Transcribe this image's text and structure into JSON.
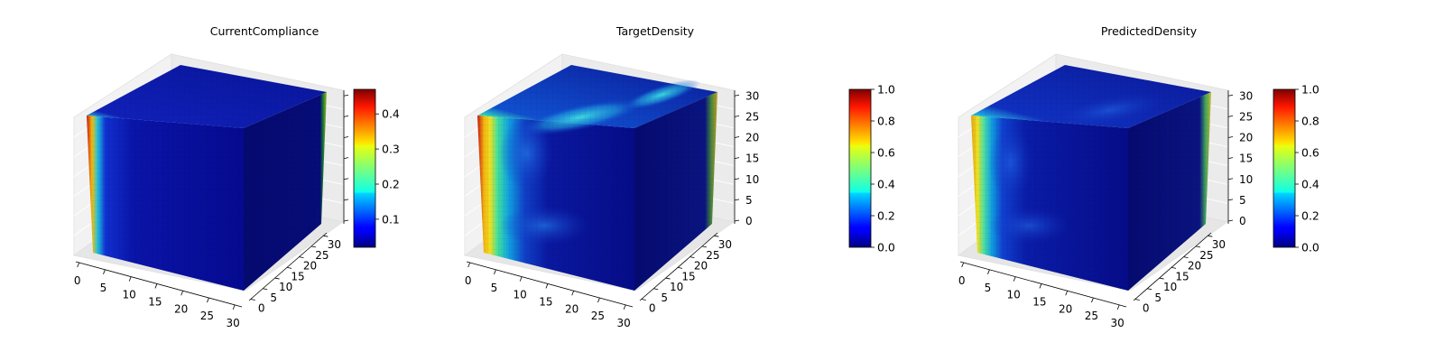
{
  "chart_data": [
    {
      "type": "voxel-3d",
      "title": "CurrentCompliance",
      "x_ticks": [
        "0",
        "5",
        "10",
        "15",
        "20",
        "25",
        "30"
      ],
      "y_ticks": [
        "0",
        "5",
        "10",
        "15",
        "20",
        "25",
        "30"
      ],
      "z_ticks": [],
      "grid_size": 32,
      "colorbar": {
        "colormap": "jet",
        "range": [
          0.02,
          0.47
        ],
        "tick_values": [
          0.1,
          0.2,
          0.3,
          0.4
        ],
        "tick_labels": [
          "0.1",
          "0.2",
          "0.3",
          "0.4"
        ]
      }
    },
    {
      "type": "voxel-3d",
      "title": "TargetDensity",
      "x_ticks": [
        "0",
        "5",
        "10",
        "15",
        "20",
        "25",
        "30"
      ],
      "y_ticks": [
        "0",
        "5",
        "10",
        "15",
        "20",
        "25",
        "30"
      ],
      "z_ticks": [
        "0",
        "5",
        "10",
        "15",
        "20",
        "25",
        "30"
      ],
      "grid_size": 32,
      "colorbar": {
        "colormap": "jet",
        "range": [
          0.0,
          1.0
        ],
        "tick_values": [
          0.0,
          0.2,
          0.4,
          0.6,
          0.8,
          1.0
        ],
        "tick_labels": [
          "0.0",
          "0.2",
          "0.4",
          "0.6",
          "0.8",
          "1.0"
        ]
      }
    },
    {
      "type": "voxel-3d",
      "title": "PredictedDensity",
      "x_ticks": [
        "0",
        "5",
        "10",
        "15",
        "20",
        "25",
        "30"
      ],
      "y_ticks": [
        "0",
        "5",
        "10",
        "15",
        "20",
        "25",
        "30"
      ],
      "z_ticks": [
        "0",
        "5",
        "10",
        "15",
        "20",
        "25",
        "30"
      ],
      "grid_size": 32,
      "colorbar": {
        "colormap": "jet",
        "range": [
          0.0,
          1.0
        ],
        "tick_values": [
          0.0,
          0.2,
          0.4,
          0.6,
          0.8,
          1.0
        ],
        "tick_labels": [
          "0.0",
          "0.2",
          "0.4",
          "0.6",
          "0.8",
          "1.0"
        ]
      }
    }
  ]
}
